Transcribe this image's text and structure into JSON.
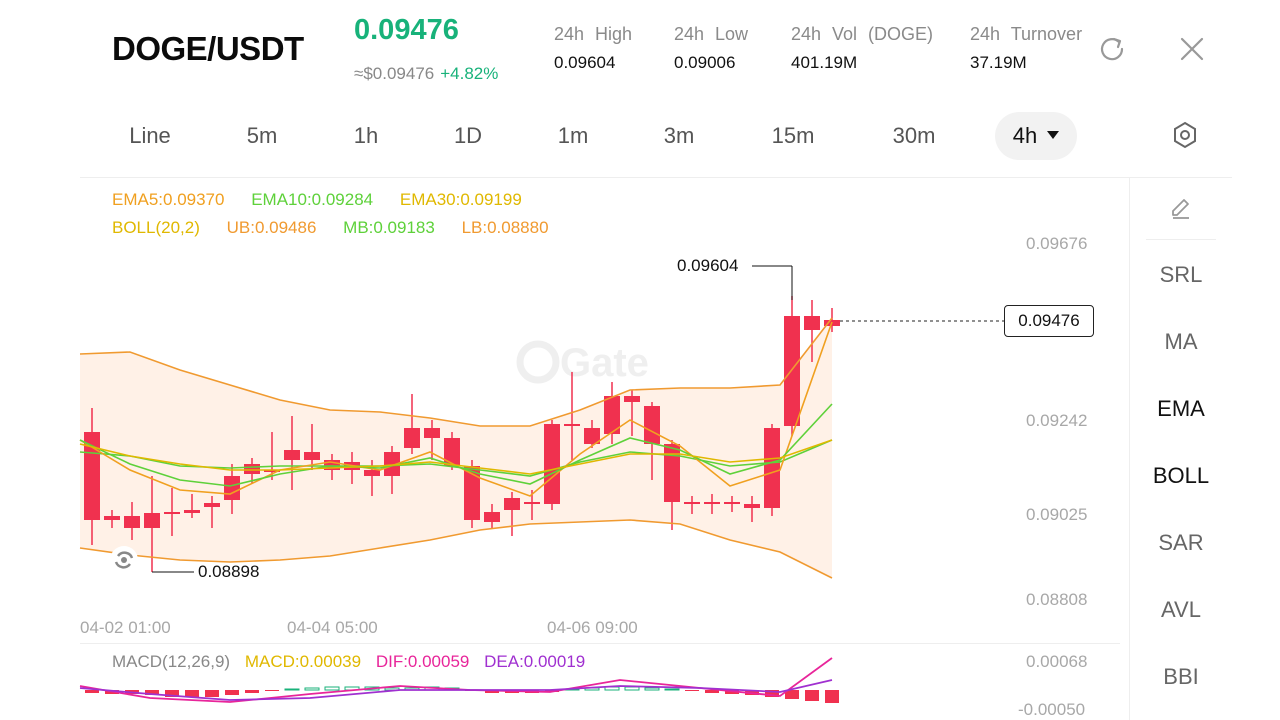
{
  "header": {
    "pair": "DOGE/USDT",
    "price": "0.09476",
    "price_fiat": "≈$0.09476",
    "change": "+4.82%",
    "stats": [
      {
        "label": "24h High",
        "value": "0.09604"
      },
      {
        "label": "24h Low",
        "value": "0.09006"
      },
      {
        "label": "24h Vol (DOGE)",
        "value": "401.19M"
      },
      {
        "label": "24h Turnover",
        "value": "37.19M"
      }
    ]
  },
  "icons": {
    "refresh": "refresh-icon",
    "close": "close-icon",
    "settings": "settings-icon",
    "draw": "pencil-icon"
  },
  "tabs": [
    {
      "label": "Line"
    },
    {
      "label": "5m"
    },
    {
      "label": "1h"
    },
    {
      "label": "1D"
    },
    {
      "label": "1m"
    },
    {
      "label": "3m"
    },
    {
      "label": "15m"
    },
    {
      "label": "30m"
    },
    {
      "label": "4h",
      "active": true
    }
  ],
  "legend": {
    "ema5": "EMA5:0.09370",
    "ema10": "EMA10:0.09284",
    "ema30": "EMA30:0.09199",
    "boll": "BOLL(20,2)",
    "ub": "UB:0.09486",
    "mb": "MB:0.09183",
    "lb": "LB:0.08880"
  },
  "y_axis": [
    "0.09676",
    "0.09242",
    "0.09025",
    "0.08808"
  ],
  "x_axis": [
    "04-02 01:00",
    "04-04 05:00",
    "04-06 09:00"
  ],
  "annotations": {
    "high": "0.09604",
    "low": "0.08898",
    "current": "0.09476"
  },
  "watermark": "Gate",
  "side_menu": [
    {
      "label": "SRL",
      "on": false
    },
    {
      "label": "MA",
      "on": false
    },
    {
      "label": "EMA",
      "on": true
    },
    {
      "label": "BOLL",
      "on": true
    },
    {
      "label": "SAR",
      "on": false
    },
    {
      "label": "AVL",
      "on": false
    },
    {
      "label": "BBI",
      "on": false
    }
  ],
  "macd": {
    "title": "MACD(12,26,9)",
    "macd": "MACD:0.00039",
    "dif": "DIF:0.00059",
    "dea": "DEA:0.00019",
    "y_top": "0.00068",
    "y_bottom": "-0.00050"
  },
  "colors": {
    "up": "#18b27a",
    "down": "#f0314f",
    "ema5": "#f0a020",
    "ema10": "#5ed13a",
    "ema30": "#e0b800",
    "boll": "#f09a30",
    "dif": "#e8259a",
    "dea": "#a030d0"
  }
}
